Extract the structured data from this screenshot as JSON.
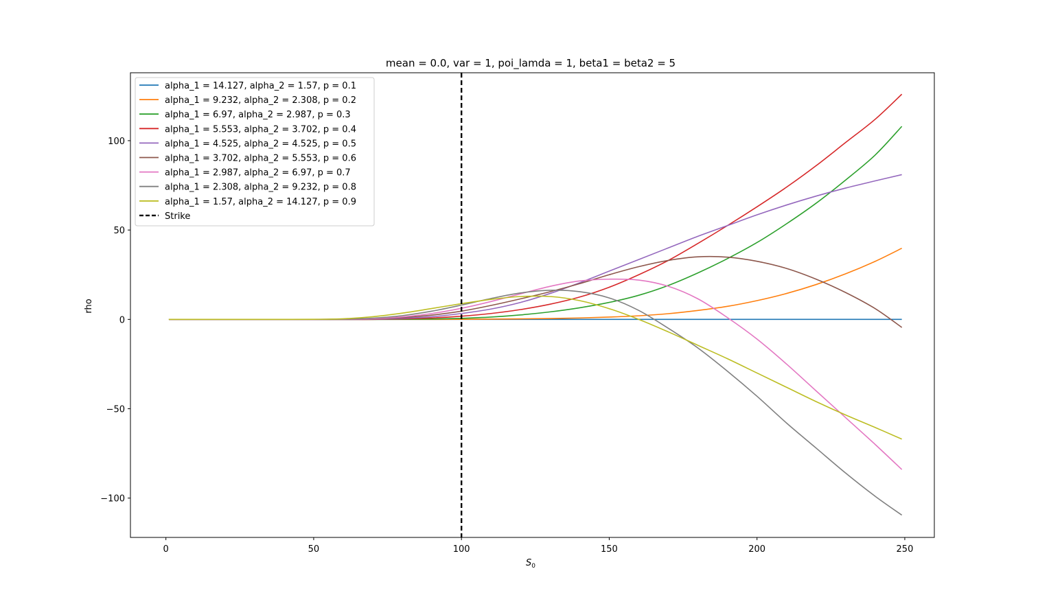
{
  "chart_data": {
    "type": "line",
    "title": "mean = 0.0, var = 1, poi_lamda = 1,  beta1 =  beta2 = 5",
    "xlabel": "S_0",
    "xlabel_main": "S",
    "xlabel_sub": "0",
    "ylabel": "rho",
    "xlim": [
      -12,
      260
    ],
    "ylim": [
      -122,
      138
    ],
    "x_ticks": [
      0,
      50,
      100,
      150,
      200,
      250
    ],
    "x_tick_labels": [
      "0",
      "50",
      "100",
      "150",
      "200",
      "250"
    ],
    "y_ticks": [
      -100,
      -50,
      0,
      50,
      100
    ],
    "y_tick_labels": [
      "−100",
      "−50",
      "0",
      "50",
      "100"
    ],
    "grid": false,
    "legend_position": "top-left",
    "x": [
      1,
      10,
      20,
      30,
      40,
      50,
      60,
      70,
      80,
      90,
      100,
      110,
      120,
      130,
      140,
      150,
      160,
      170,
      180,
      190,
      200,
      210,
      220,
      230,
      240,
      249
    ],
    "series": [
      {
        "name": "alpha_1 = 14.127, alpha_2 = 1.57, p = 0.1",
        "color": "#1f77b4",
        "values": [
          0,
          0,
          0,
          0,
          0,
          0,
          0,
          0,
          0,
          0,
          0,
          0,
          0,
          0,
          0,
          0,
          0,
          0,
          0,
          0,
          0,
          0,
          0,
          0,
          0,
          0
        ]
      },
      {
        "name": "alpha_1 = 9.232, alpha_2 = 2.308, p = 0.2",
        "color": "#ff7f0e",
        "values": [
          0,
          0,
          0,
          0,
          0,
          0,
          0,
          0,
          0,
          0,
          0.05,
          0.15,
          0.3,
          0.5,
          0.8,
          1.3,
          2.0,
          3.2,
          5.0,
          7.3,
          10.5,
          14.5,
          19.5,
          25.5,
          32.5,
          39.8
        ]
      },
      {
        "name": "alpha_1 = 6.97, alpha_2 = 2.987, p = 0.3",
        "color": "#2ca02c",
        "values": [
          0,
          0,
          0,
          0,
          0,
          0,
          0,
          0,
          0.05,
          0.2,
          0.6,
          1.3,
          2.5,
          4.2,
          6.5,
          9.5,
          13.5,
          19,
          26,
          34,
          43,
          53.5,
          65,
          78,
          92,
          108
        ]
      },
      {
        "name": "alpha_1 = 5.553, alpha_2 = 3.702, p = 0.4",
        "color": "#d62728",
        "values": [
          0,
          0,
          0,
          0,
          0,
          0,
          0,
          0,
          0.3,
          0.8,
          1.8,
          3.3,
          5.5,
          8.5,
          12.5,
          18,
          25,
          33,
          42.5,
          52.5,
          63,
          74,
          86,
          99,
          112,
          126
        ]
      },
      {
        "name": "alpha_1 = 4.525, alpha_2 = 4.525, p = 0.5",
        "color": "#9467bd",
        "values": [
          0,
          0,
          0,
          0,
          0,
          0,
          0,
          0.1,
          0.6,
          1.5,
          3.3,
          5.8,
          9.5,
          14.5,
          20.5,
          27,
          33.5,
          40,
          46.5,
          52.5,
          58.5,
          64,
          69,
          73.5,
          77.5,
          81
        ]
      },
      {
        "name": "alpha_1 = 3.702, alpha_2 = 5.553, p = 0.6",
        "color": "#8c564b",
        "values": [
          0,
          0,
          0,
          0,
          0,
          0,
          0,
          0.2,
          1.0,
          2.4,
          4.6,
          7.8,
          11.5,
          15.5,
          20,
          25,
          29.5,
          33,
          35,
          34.8,
          32.5,
          28.5,
          22.5,
          15,
          6,
          -4.5
        ]
      },
      {
        "name": "alpha_1 = 2.987, alpha_2 = 6.97, p = 0.7",
        "color": "#e377c2",
        "values": [
          0,
          0,
          0,
          0,
          0,
          0,
          0.1,
          0.4,
          1.4,
          3.3,
          6.2,
          10,
          14.3,
          18.5,
          21.5,
          22.5,
          22,
          18.5,
          11.5,
          1,
          -11,
          -25,
          -40,
          -55,
          -70,
          -84
        ]
      },
      {
        "name": "alpha_1 = 2.308, alpha_2 = 9.232, p = 0.8",
        "color": "#7f7f7f",
        "values": [
          0,
          0,
          0,
          0,
          0,
          0,
          0.15,
          0.7,
          2.1,
          4.6,
          8,
          11.7,
          14.8,
          16.3,
          15.5,
          12,
          5,
          -5,
          -16,
          -29,
          -43,
          -58,
          -72,
          -86,
          -99,
          -109.5
        ]
      },
      {
        "name": "alpha_1 = 1.57, alpha_2 = 14.127, p = 0.9",
        "color": "#bcbd22",
        "values": [
          0,
          0,
          0,
          0,
          0,
          0.05,
          0.35,
          1.5,
          3.5,
          6.1,
          8.8,
          11.2,
          12.8,
          12.8,
          10.5,
          6,
          0,
          -7,
          -14.5,
          -22,
          -30,
          -38,
          -46,
          -53.5,
          -60.5,
          -67
        ]
      }
    ],
    "vline": {
      "name": "Strike",
      "x": 100,
      "color": "#000000",
      "style": "dashed"
    }
  }
}
